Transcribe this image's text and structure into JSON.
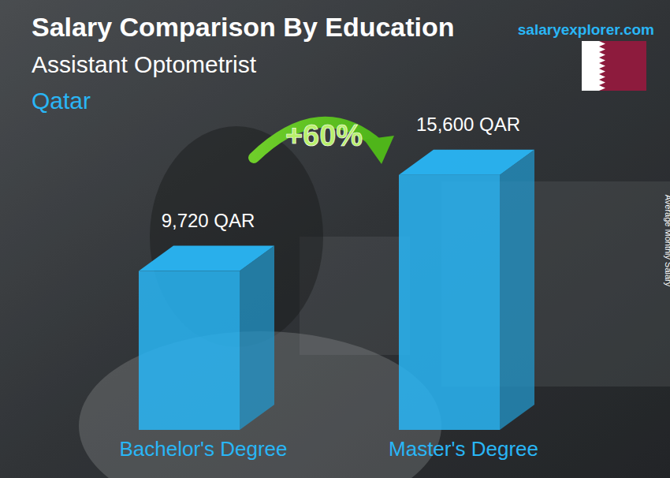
{
  "chart_data": {
    "type": "bar",
    "title": "Salary Comparison By Education",
    "subtitle": "Assistant Optometrist",
    "location": "Qatar",
    "source": "salaryexplorer.com",
    "annotation": "+60%",
    "y_label": "Average Monthly Salary",
    "categories": [
      "Bachelor's Degree",
      "Master's Degree"
    ],
    "values": [
      9720,
      15600
    ],
    "value_labels": [
      "9,720 QAR",
      "15,600 QAR"
    ],
    "color": "#29b6f6",
    "ylim": [
      0,
      18000
    ],
    "data_labels": true,
    "tick_labels": "x",
    "grid": false
  }
}
